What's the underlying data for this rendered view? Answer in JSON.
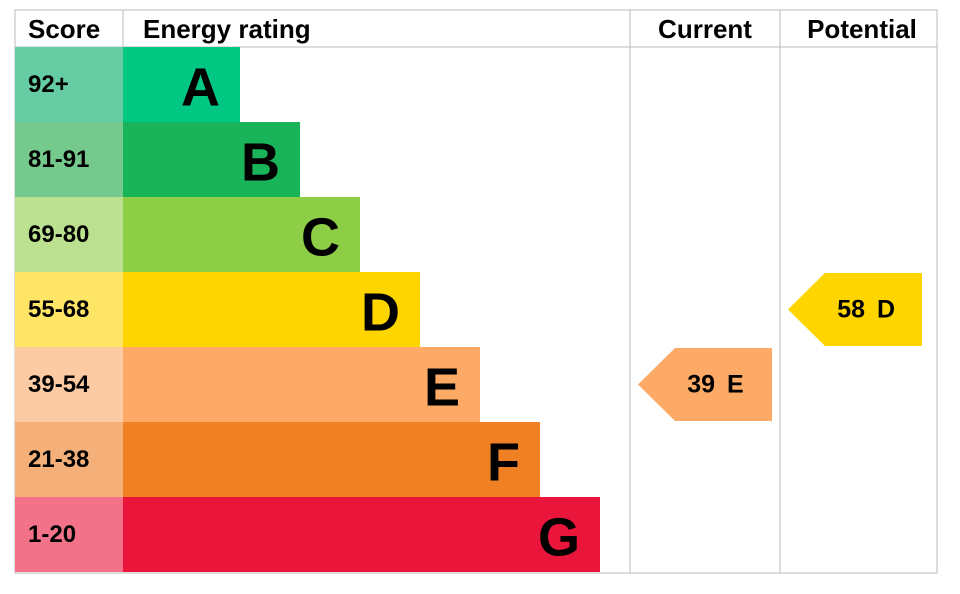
{
  "header": {
    "score": "Score",
    "rating": "Energy rating",
    "current": "Current",
    "potential": "Potential"
  },
  "bands": [
    {
      "score": "92+",
      "letter": "A",
      "color": "#00c781",
      "score_color": "#66cca3"
    },
    {
      "score": "81-91",
      "letter": "B",
      "color": "#19b459",
      "score_color": "#75c98d"
    },
    {
      "score": "69-80",
      "letter": "C",
      "color": "#8dce46",
      "score_color": "#bbe08f"
    },
    {
      "score": "55-68",
      "letter": "D",
      "color": "#ffd500",
      "score_color": "#ffe566"
    },
    {
      "score": "39-54",
      "letter": "E",
      "color": "#fcaa65",
      "score_color": "#fdcba3"
    },
    {
      "score": "21-38",
      "letter": "F",
      "color": "#ef8023",
      "score_color": "#f5b07a"
    },
    {
      "score": "1-20",
      "letter": "G",
      "color": "#e9153b",
      "score_color": "#f27389"
    }
  ],
  "current": {
    "value": 39,
    "letter": "E"
  },
  "potential": {
    "value": 58,
    "letter": "D"
  }
}
